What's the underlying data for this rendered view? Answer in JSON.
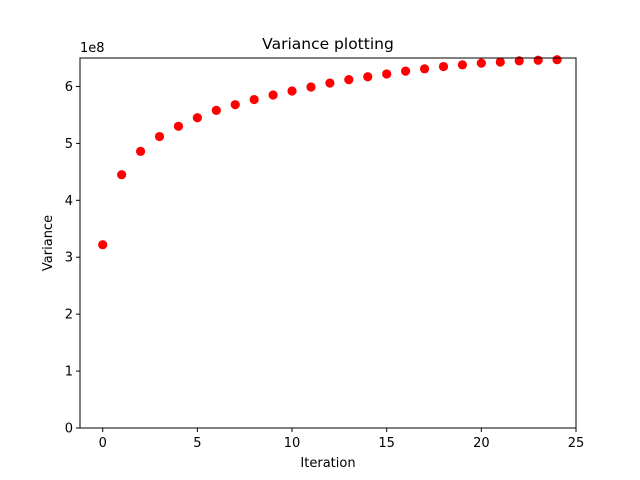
{
  "chart_data": {
    "type": "scatter",
    "title": "Variance plotting",
    "xlabel": "Iteration",
    "ylabel": "Variance",
    "y_offset_label": "1e8",
    "xlim": [
      -1.2,
      25
    ],
    "ylim": [
      0,
      650000000.0
    ],
    "xticks": [
      0,
      5,
      10,
      15,
      20,
      25
    ],
    "yticks": [
      0,
      100000000.0,
      200000000.0,
      300000000.0,
      400000000.0,
      500000000.0,
      600000000.0
    ],
    "xtick_labels": [
      "0",
      "5",
      "10",
      "15",
      "20",
      "25"
    ],
    "ytick_labels": [
      "0",
      "1",
      "2",
      "3",
      "4",
      "5",
      "6"
    ],
    "grid": false,
    "marker_color": "#ff0000",
    "series": [
      {
        "x": [
          0,
          1,
          2,
          3,
          4,
          5,
          6,
          7,
          8,
          9,
          10,
          11,
          12,
          13,
          14,
          15,
          16,
          17,
          18,
          19,
          20,
          21,
          22,
          23,
          24
        ],
        "y": [
          322000000.0,
          445000000.0,
          486000000.0,
          512000000.0,
          530000000.0,
          545000000.0,
          558000000.0,
          568000000.0,
          577000000.0,
          585000000.0,
          592000000.0,
          599000000.0,
          606000000.0,
          612000000.0,
          617000000.0,
          622000000.0,
          627000000.0,
          631000000.0,
          635000000.0,
          638000000.0,
          641000000.0,
          643000000.0,
          645000000.0,
          646000000.0,
          647000000.0
        ]
      }
    ]
  }
}
